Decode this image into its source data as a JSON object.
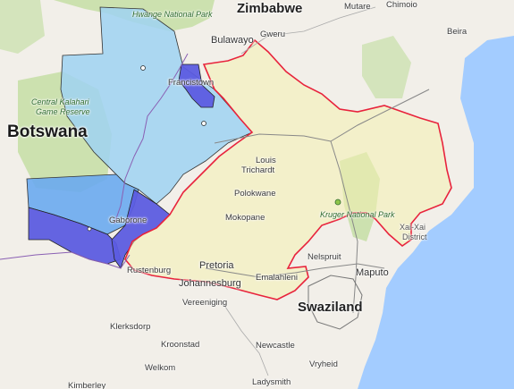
{
  "labels": {
    "zimbabwe": "Zimbabwe",
    "botswana": "Botswana",
    "swaziland": "Swaziland",
    "hwange": "Hwange National Park",
    "kalahari_1": "Central Kalahari",
    "kalahari_2": "Game Reserve",
    "kruger": "Kruger National Park",
    "xai_1": "Xai-Xai",
    "xai_2": "District",
    "bulawayo": "Bulawayo",
    "gweru": "Gweru",
    "mutare": "Mutare",
    "chimoio": "Chimoio",
    "beira": "Beira",
    "francistown": "Francistown",
    "louis_1": "Louis",
    "louis_2": "Trichardt",
    "polokwane": "Polokwane",
    "mokopane": "Mokopane",
    "gaborone": "Gaborone",
    "rustenburg": "Rustenburg",
    "pretoria": "Pretoria",
    "johannesburg": "Johannesburg",
    "nelspruit": "Nelspruit",
    "emalahleni": "Emalahleni",
    "maputo": "Maputo",
    "vereeniging": "Vereeniging",
    "klerksdorp": "Klerksdorp",
    "kroonstad": "Kroonstad",
    "welkom": "Welkom",
    "newcastle": "Newcastle",
    "vryheid": "Vryheid",
    "ladysmith": "Ladysmith",
    "kimberley": "Kimberley"
  },
  "colors": {
    "land": "#f2efe9",
    "park": "#c8dfa8",
    "ocean": "#a3ccff",
    "region_outline": "#e8233c",
    "region_fill": "#f4f0b0",
    "botswana_light": "#9fd2f2",
    "botswana_mid": "#6aaaf0",
    "botswana_dark": "#5c5ce0",
    "roads": "#888888"
  }
}
